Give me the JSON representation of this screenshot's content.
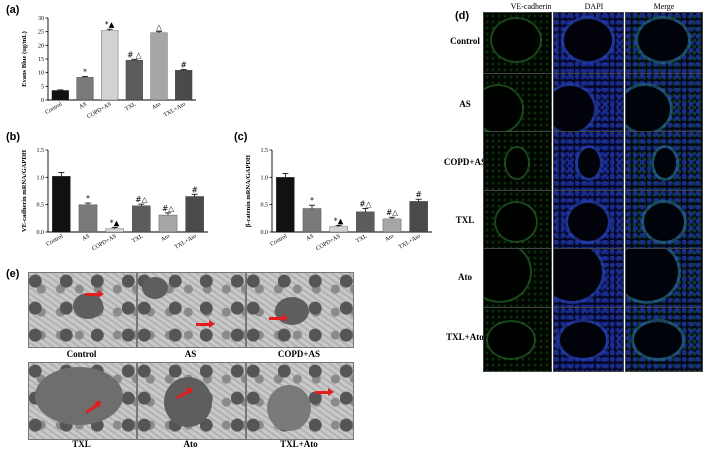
{
  "panel_labels": {
    "a": "(a)",
    "b": "(b)",
    "c": "(c)",
    "d": "(d)",
    "e": "(e)"
  },
  "chart_data": [
    {
      "type": "bar",
      "panel": "a",
      "ylabel": "Evans Blue (ug/mL)",
      "ylim": [
        0,
        30
      ],
      "yticks": [
        "0",
        "5",
        "10",
        "15",
        "20",
        "25",
        "30"
      ],
      "categories": [
        "Control",
        "AS",
        "COPD+AS",
        "TXL",
        "Ato",
        "TXL+Ato"
      ],
      "values": [
        3.5,
        8.3,
        25.4,
        14.6,
        24.6,
        10.9
      ],
      "errors": [
        0.2,
        0.3,
        0.5,
        0.3,
        0.4,
        0.3
      ],
      "colors": [
        "#111111",
        "#7a7a7a",
        "#d2d2d2",
        "#5c5c5c",
        "#a6a6a6",
        "#4a4a4a"
      ],
      "annotations": [
        "",
        "*",
        "*▲",
        "# △",
        "△",
        "#"
      ]
    },
    {
      "type": "bar",
      "panel": "b",
      "ylabel": "VE-cadherin mRNA/GAPDH",
      "ylim": [
        0,
        1.5
      ],
      "yticks": [
        "0.0",
        "0.5",
        "1.0",
        "1.5"
      ],
      "categories": [
        "Control",
        "AS",
        "COPD+AS",
        "TXL",
        "Ato",
        "TXL+Ato"
      ],
      "values": [
        1.02,
        0.5,
        0.06,
        0.48,
        0.31,
        0.65
      ],
      "errors": [
        0.07,
        0.03,
        0.02,
        0.03,
        0.04,
        0.04
      ],
      "colors": [
        "#111111",
        "#7a7a7a",
        "#d2d2d2",
        "#5c5c5c",
        "#a6a6a6",
        "#4a4a4a"
      ],
      "annotations": [
        "",
        "*",
        "*▲",
        "#△",
        "#△",
        "#"
      ]
    },
    {
      "type": "bar",
      "panel": "c",
      "ylabel": "β-catenin mRNA/GAPDH",
      "ylim": [
        0,
        1.5
      ],
      "yticks": [
        "0.0",
        "0.5",
        "1.0",
        "1.5"
      ],
      "categories": [
        "Control",
        "AS",
        "COPD+AS",
        "TXL",
        "Ato",
        "TXL+Ato"
      ],
      "values": [
        1.0,
        0.43,
        0.1,
        0.37,
        0.24,
        0.56
      ],
      "errors": [
        0.07,
        0.06,
        0.02,
        0.06,
        0.03,
        0.04
      ],
      "colors": [
        "#111111",
        "#7a7a7a",
        "#d2d2d2",
        "#5c5c5c",
        "#a6a6a6",
        "#4a4a4a"
      ],
      "annotations": [
        "",
        "*",
        "*▲",
        "#△",
        "#△",
        "#"
      ]
    }
  ],
  "panel_d": {
    "columns": [
      "VE-cadherin",
      "DAPI",
      "Merge"
    ],
    "rows": [
      "Control",
      "AS",
      "COPD+AS",
      "TXL",
      "Ato",
      "TXL+Ato"
    ]
  },
  "panel_e": {
    "labels": [
      "Control",
      "AS",
      "COPD+AS",
      "TXL",
      "Ato",
      "TXL+Ato"
    ]
  },
  "colors": {
    "arrow": "#e21d1d",
    "dapi": "#1e3aa8",
    "cadherin": "#1f6d1f"
  }
}
